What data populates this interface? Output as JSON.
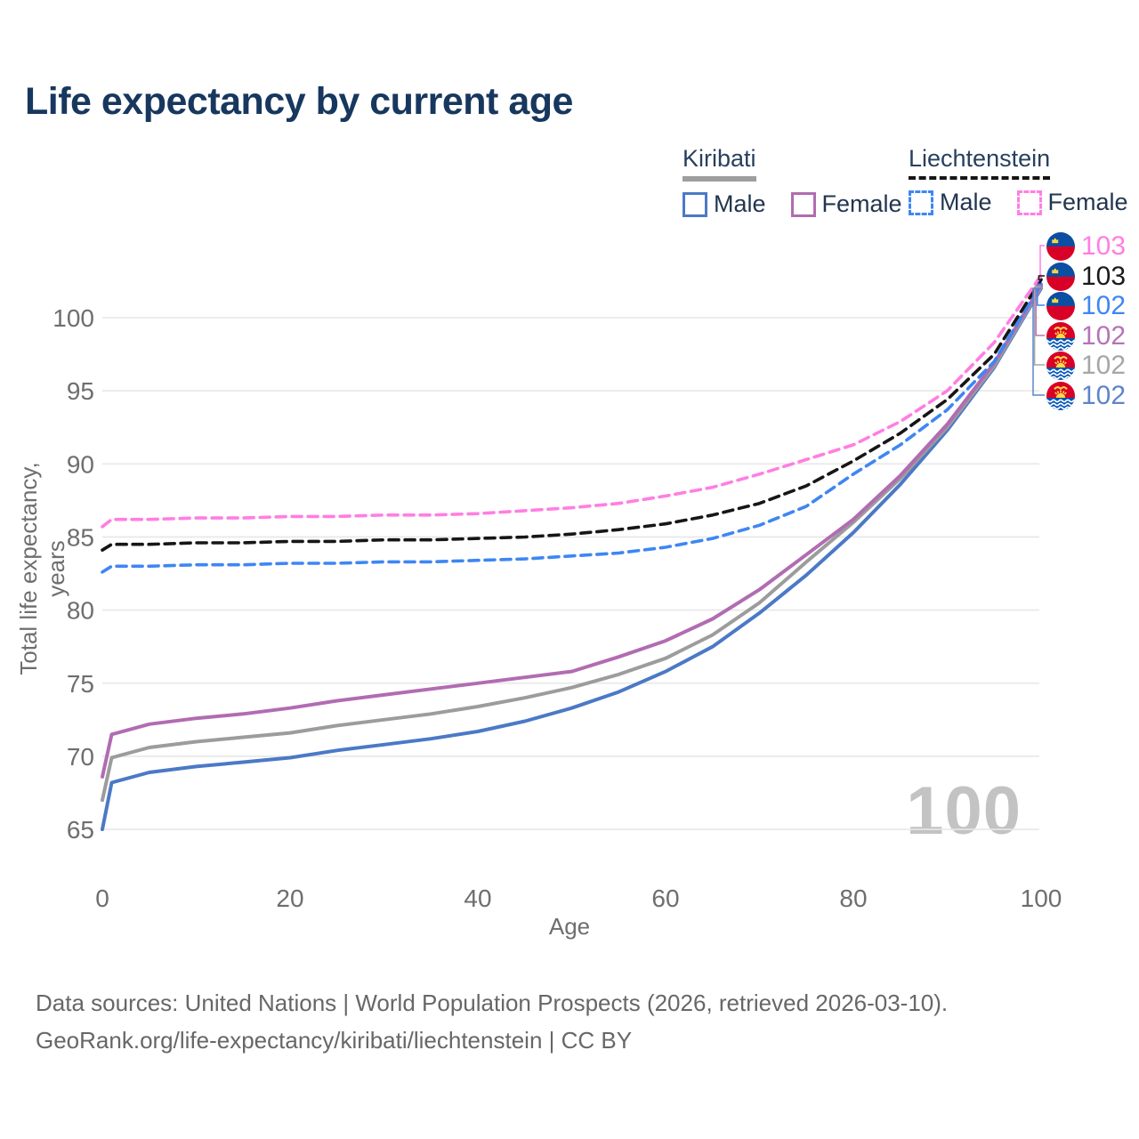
{
  "title": "Life expectancy by current age",
  "watermark": "100",
  "legend": {
    "groups": [
      {
        "name": "Kiribati",
        "line_style": "solid",
        "underline_color": "#9e9e9e",
        "items": [
          {
            "label": "Male",
            "color": "#4b79c6",
            "dashed": false
          },
          {
            "label": "Female",
            "color": "#b16cb2",
            "dashed": false
          }
        ]
      },
      {
        "name": "Liechtenstein",
        "line_style": "dashed",
        "underline_color": "#161616",
        "items": [
          {
            "label": "Male",
            "color": "#3e86f3",
            "dashed": true
          },
          {
            "label": "Female",
            "color": "#ff7ee2",
            "dashed": true
          }
        ]
      }
    ]
  },
  "end_labels": [
    {
      "series": "liech_female",
      "flag": "liechtenstein",
      "value": "103",
      "color": "#ff7ee2"
    },
    {
      "series": "liech_total",
      "flag": "liechtenstein",
      "value": "103",
      "color": "#1a1a1a"
    },
    {
      "series": "liech_male",
      "flag": "liechtenstein",
      "value": "102",
      "color": "#3e86f3"
    },
    {
      "series": "kiri_female",
      "flag": "kiribati",
      "value": "102",
      "color": "#b573b6"
    },
    {
      "series": "kiri_total",
      "flag": "kiribati",
      "value": "102",
      "color": "#a6a6a6"
    },
    {
      "series": "kiri_male",
      "flag": "kiribati",
      "value": "102",
      "color": "#5e84cb"
    }
  ],
  "footer": {
    "line1": "Data sources: United Nations | World Population Prospects (2026, retrieved 2026-03-10).",
    "line2": "GeoRank.org/life-expectancy/kiribati/liechtenstein | CC BY"
  },
  "chart_data": {
    "type": "line",
    "title": "Life expectancy by current age",
    "xlabel": "Age",
    "ylabel": "Total life expectancy, years",
    "xlim": [
      0,
      100
    ],
    "ylim": [
      63,
      104
    ],
    "xticks": [
      0,
      20,
      40,
      60,
      80,
      100
    ],
    "yticks": [
      65,
      70,
      75,
      80,
      85,
      90,
      95,
      100
    ],
    "grid": "horizontal",
    "legend_position": "top-right",
    "x": [
      0,
      1,
      5,
      10,
      15,
      20,
      25,
      30,
      35,
      40,
      45,
      50,
      55,
      60,
      65,
      70,
      75,
      80,
      85,
      90,
      95,
      100
    ],
    "series": [
      {
        "key": "kiri_male",
        "name": "Kiribati Male",
        "color": "#4b79c6",
        "dashed": false,
        "values": [
          65.0,
          68.2,
          68.9,
          69.3,
          69.6,
          69.9,
          70.4,
          70.8,
          71.2,
          71.7,
          72.4,
          73.3,
          74.4,
          75.8,
          77.5,
          79.8,
          82.4,
          85.3,
          88.6,
          92.3,
          96.6,
          102.0
        ]
      },
      {
        "key": "kiri_total",
        "name": "Kiribati Total",
        "color": "#9c9c9c",
        "dashed": false,
        "values": [
          67.0,
          69.9,
          70.6,
          71.0,
          71.3,
          71.6,
          72.1,
          72.5,
          72.9,
          73.4,
          74.0,
          74.7,
          75.6,
          76.7,
          78.3,
          80.5,
          83.3,
          86.0,
          89.0,
          92.5,
          96.7,
          102.1
        ]
      },
      {
        "key": "kiri_female",
        "name": "Kiribati Female",
        "color": "#b16cb2",
        "dashed": false,
        "values": [
          68.6,
          71.5,
          72.2,
          72.6,
          72.9,
          73.3,
          73.8,
          74.2,
          74.6,
          75.0,
          75.4,
          75.8,
          76.8,
          77.9,
          79.4,
          81.4,
          83.8,
          86.2,
          89.2,
          92.7,
          96.9,
          102.2
        ]
      },
      {
        "key": "liech_male",
        "name": "Liechtenstein Male",
        "color": "#3e86f3",
        "dashed": true,
        "values": [
          82.6,
          83.0,
          83.0,
          83.1,
          83.1,
          83.2,
          83.2,
          83.3,
          83.3,
          83.4,
          83.5,
          83.7,
          83.9,
          84.3,
          84.9,
          85.8,
          87.1,
          89.3,
          91.3,
          93.7,
          97.0,
          102.3
        ]
      },
      {
        "key": "liech_total",
        "name": "Liechtenstein Total",
        "color": "#161616",
        "dashed": true,
        "values": [
          84.1,
          84.5,
          84.5,
          84.6,
          84.6,
          84.7,
          84.7,
          84.8,
          84.8,
          84.9,
          85.0,
          85.2,
          85.5,
          85.9,
          86.5,
          87.3,
          88.5,
          90.2,
          92.1,
          94.4,
          97.5,
          102.6
        ]
      },
      {
        "key": "liech_female",
        "name": "Liechtenstein Female",
        "color": "#ff7ee2",
        "dashed": true,
        "values": [
          85.7,
          86.2,
          86.2,
          86.3,
          86.3,
          86.4,
          86.4,
          86.5,
          86.5,
          86.6,
          86.8,
          87.0,
          87.3,
          87.8,
          88.4,
          89.3,
          90.3,
          91.3,
          92.9,
          95.0,
          98.3,
          102.9
        ]
      }
    ]
  }
}
